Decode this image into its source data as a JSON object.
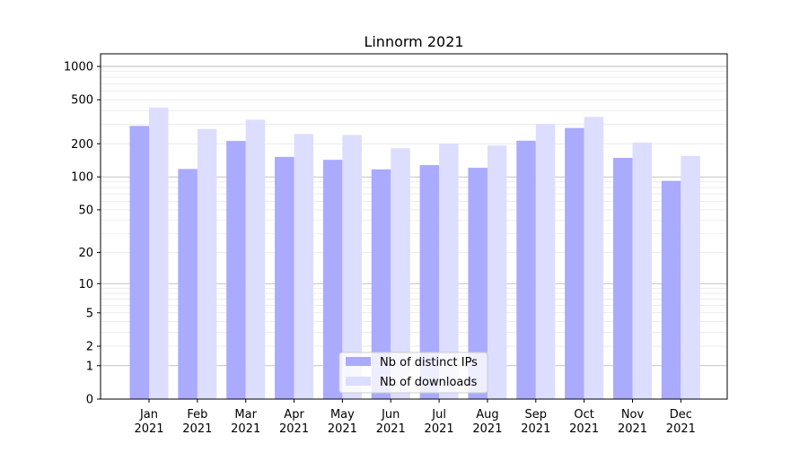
{
  "chart_data": {
    "type": "bar",
    "title": "Linnorm 2021",
    "xlabel": "",
    "ylabel": "",
    "yscale": "log(1+y)",
    "ylim": [
      0,
      1300
    ],
    "yticks": [
      0,
      1,
      2,
      5,
      10,
      20,
      50,
      100,
      200,
      500,
      1000
    ],
    "grid": "horizontal, minor and major",
    "legend_position": "bottom-center",
    "categories": [
      [
        "Jan",
        "2021"
      ],
      [
        "Feb",
        "2021"
      ],
      [
        "Mar",
        "2021"
      ],
      [
        "Apr",
        "2021"
      ],
      [
        "May",
        "2021"
      ],
      [
        "Jun",
        "2021"
      ],
      [
        "Jul",
        "2021"
      ],
      [
        "Aug",
        "2021"
      ],
      [
        "Sep",
        "2021"
      ],
      [
        "Oct",
        "2021"
      ],
      [
        "Nov",
        "2021"
      ],
      [
        "Dec",
        "2021"
      ]
    ],
    "series": [
      {
        "name": "Nb of distinct IPs",
        "color": "#aaaaff",
        "values": [
          290,
          118,
          212,
          152,
          143,
          117,
          128,
          121,
          213,
          278,
          149,
          92
        ]
      },
      {
        "name": "Nb of downloads",
        "color": "#ddddff",
        "values": [
          425,
          272,
          330,
          245,
          240,
          182,
          200,
          193,
          302,
          350,
          205,
          155
        ]
      }
    ]
  }
}
